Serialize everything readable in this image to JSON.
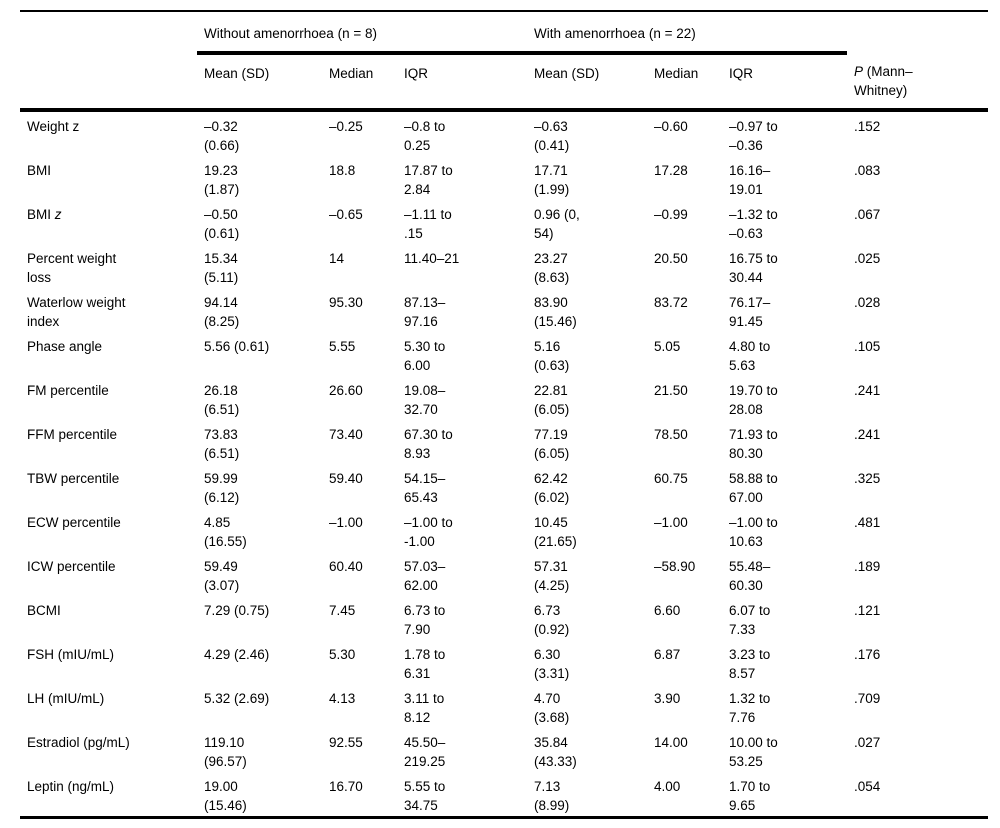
{
  "table": {
    "group_headers": [
      {
        "label": "Without amenorrhoea (n = 8)"
      },
      {
        "label": "With amenorrhoea (n = 22)"
      }
    ],
    "col_headers": {
      "without_mean": "Mean (SD)",
      "without_median": "Median",
      "without_iqr": "IQR",
      "with_mean": "Mean (SD)",
      "with_median": "Median",
      "with_iqr": "IQR"
    },
    "p_header": {
      "italic": "P",
      "rest": " (Mann–\nWhitney)"
    },
    "rows": [
      {
        "label": "Weight z",
        "cells": [
          "–0.32\n(0.66)",
          "–0.25",
          "–0.8 to\n0.25",
          "–0.63\n(0.41)",
          "–0.60",
          "–0.97 to\n–0.36"
        ],
        "p": ".152",
        "p_bold": false
      },
      {
        "label": "BMI",
        "cells": [
          "19.23\n(1.87)",
          "18.8",
          "17.87 to\n2.84",
          "17.71\n(1.99)",
          "17.28",
          "16.16–\n19.01"
        ],
        "p": ".083",
        "p_bold": false
      },
      {
        "label": "BMI ",
        "label_italic": "z",
        "cells": [
          "–0.50\n(0.61)",
          "–0.65",
          "–1.11 to\n.15",
          "0.96 (0,\n54)",
          "–0.99",
          "–1.32 to\n–0.63"
        ],
        "p": ".067",
        "p_bold": false
      },
      {
        "label": "Percent weight\nloss",
        "cells": [
          "15.34\n(5.11)",
          "14",
          "11.40–21",
          "23.27\n(8.63)",
          "20.50",
          "16.75 to\n30.44"
        ],
        "p": ".025",
        "p_bold": true
      },
      {
        "label": "Waterlow weight\nindex",
        "cells": [
          "94.14\n(8.25)",
          "95.30",
          "87.13–\n97.16",
          "83.90\n(15.46)",
          "83.72",
          "76.17–\n91.45"
        ],
        "p": ".028",
        "p_bold": true
      },
      {
        "label": "Phase angle",
        "cells": [
          "5.56 (0.61)",
          "5.55",
          "5.30 to\n6.00",
          "5.16\n(0.63)",
          "5.05",
          "4.80 to\n5.63"
        ],
        "p": ".105",
        "p_bold": false
      },
      {
        "label": "FM percentile",
        "cells": [
          "26.18\n(6.51)",
          "26.60",
          "19.08–\n32.70",
          "22.81\n(6.05)",
          "21.50",
          "19.70 to\n28.08"
        ],
        "p": ".241",
        "p_bold": false
      },
      {
        "label": "FFM percentile",
        "cells": [
          "73.83\n(6.51)",
          "73.40",
          "67.30 to\n8.93",
          "77.19\n(6.05)",
          "78.50",
          "71.93 to\n80.30"
        ],
        "p": ".241",
        "p_bold": false
      },
      {
        "label": "TBW percentile",
        "cells": [
          "59.99\n(6.12)",
          "59.40",
          "54.15–\n65.43",
          "62.42\n(6.02)",
          "60.75",
          "58.88 to\n67.00"
        ],
        "p": ".325",
        "p_bold": false
      },
      {
        "label": "ECW percentile",
        "cells": [
          "4.85\n(16.55)",
          "–1.00",
          "–1.00 to\n-1.00",
          "10.45\n(21.65)",
          "–1.00",
          "–1.00 to\n10.63"
        ],
        "p": ".481",
        "p_bold": false
      },
      {
        "label": "ICW percentile",
        "cells": [
          "59.49\n(3.07)",
          "60.40",
          "57.03–\n62.00",
          "57.31\n(4.25)",
          "–58.90",
          "55.48–\n60.30"
        ],
        "p": ".189",
        "p_bold": false
      },
      {
        "label": "BCMI",
        "cells": [
          "7.29 (0.75)",
          "7.45",
          "6.73 to\n7.90",
          "6.73\n(0.92)",
          "6.60",
          "6.07 to\n7.33"
        ],
        "p": ".121",
        "p_bold": false
      },
      {
        "label": "FSH (mIU/mL)",
        "cells": [
          "4.29 (2.46)",
          "5.30",
          "1.78 to\n6.31",
          "6.30\n(3.31)",
          "6.87",
          "3.23 to\n8.57"
        ],
        "p": ".176",
        "p_bold": false
      },
      {
        "label": "LH (mIU/mL)",
        "cells": [
          "5.32 (2.69)",
          "4.13",
          "3.11 to\n8.12",
          "4.70\n(3.68)",
          "3.90",
          "1.32 to\n7.76"
        ],
        "p": ".709",
        "p_bold": false
      },
      {
        "label": "Estradiol (pg/mL)",
        "cells": [
          "119.10\n(96.57)",
          "92.55",
          "45.50–\n219.25",
          "35.84\n(43.33)",
          "14.00",
          "10.00 to\n53.25"
        ],
        "p": ".027",
        "p_bold": true
      },
      {
        "label": "Leptin (ng/mL)",
        "cells": [
          "19.00\n(15.46)",
          "16.70",
          "5.55 to\n34.75",
          "7.13\n(8.99)",
          "4.00",
          "1.70 to\n9.65"
        ],
        "p": ".054",
        "p_bold": false
      }
    ]
  }
}
